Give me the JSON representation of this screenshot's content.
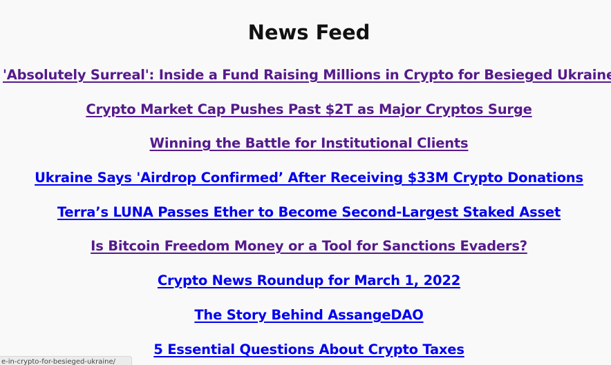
{
  "page": {
    "title": "News Feed"
  },
  "colors": {
    "visited_link": "#551a8b",
    "unvisited_link": "#0000ee",
    "background": "#f9f9f9"
  },
  "feed": {
    "items": [
      {
        "label": "'Absolutely Surreal': Inside a Fund Raising Millions in Crypto for Besieged Ukraine",
        "visited": true
      },
      {
        "label": "Crypto Market Cap Pushes Past $2T as Major Cryptos Surge",
        "visited": true
      },
      {
        "label": "Winning the Battle for Institutional Clients",
        "visited": true
      },
      {
        "label": "Ukraine Says 'Airdrop Confirmed’ After Receiving $33M Crypto Donations",
        "visited": false
      },
      {
        "label": "Terra’s LUNA Passes Ether to Become Second-Largest Staked Asset",
        "visited": false
      },
      {
        "label": "Is Bitcoin Freedom Money or a Tool for Sanctions Evaders?",
        "visited": true
      },
      {
        "label": "Crypto News Roundup for March 1, 2022",
        "visited": false
      },
      {
        "label": "The Story Behind AssangeDAO",
        "visited": false
      },
      {
        "label": "5 Essential Questions About Crypto Taxes",
        "visited": false
      }
    ]
  },
  "statusbar": {
    "url": "e-in-crypto-for-besieged-ukraine/"
  }
}
